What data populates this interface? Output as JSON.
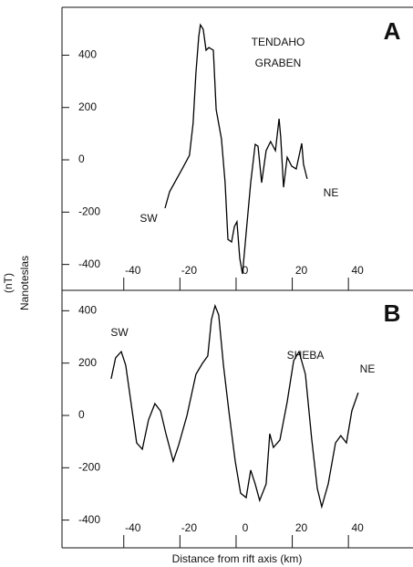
{
  "chart_data": [
    {
      "type": "line",
      "panel_label": "A",
      "title_lines": [
        "TENDAHO",
        "GRABEN"
      ],
      "annotations": [
        "SW",
        "NE"
      ],
      "xlim": [
        -62,
        63
      ],
      "ylim": [
        -499,
        583
      ],
      "xticks": [
        -40,
        -20,
        0,
        20,
        40
      ],
      "yticks": [
        400,
        200,
        0,
        -200,
        -400
      ],
      "color": "#000000",
      "x": [
        -25.3,
        -23.7,
        -19.2,
        -16.6,
        -15.3,
        -14.3,
        -13.3,
        -12.7,
        -11.7,
        -10.7,
        -9.7,
        -8.1,
        -7.1,
        -5.2,
        -3.9,
        -2.9,
        -1.6,
        -0.6,
        0.3,
        1.3,
        2.3,
        3.6,
        5.2,
        6.8,
        7.8,
        9.1,
        10.7,
        12.3,
        14,
        15.3,
        15.9,
        16.9,
        18.2,
        19.8,
        21.4,
        23.4,
        24,
        25.3
      ],
      "values": [
        -185,
        -122,
        -35,
        17,
        140,
        332,
        471,
        516,
        499,
        419,
        429,
        419,
        192,
        80,
        -87,
        -304,
        -314,
        -255,
        -237,
        -377,
        -436,
        -279,
        -87,
        59,
        52,
        -87,
        35,
        70,
        35,
        157,
        87,
        -105,
        10,
        -24,
        -35,
        63,
        -17,
        -73
      ]
    },
    {
      "type": "line",
      "panel_label": "B",
      "title_lines": [
        "SHEBA"
      ],
      "annotations": [
        "SW",
        "NE"
      ],
      "xlim": [
        -62,
        63
      ],
      "ylim": [
        -506,
        478
      ],
      "xticks": [
        -40,
        -20,
        0,
        20,
        40
      ],
      "yticks": [
        400,
        200,
        0,
        -200,
        -400
      ],
      "color": "#000000",
      "x": [
        -44.5,
        -42.9,
        -40.9,
        -39.3,
        -37,
        -35.4,
        -33.4,
        -31.2,
        -28.9,
        -26.9,
        -25,
        -22.4,
        -20.5,
        -17.5,
        -14.3,
        -12,
        -10.1,
        -8.8,
        -7.5,
        -6.2,
        -4.5,
        -2.6,
        -0.3,
        1.6,
        3.6,
        5.2,
        6.8,
        8.4,
        10.7,
        12,
        13.3,
        15.6,
        18.2,
        20.5,
        22.4,
        24.7,
        26.9,
        28.9,
        30.5,
        32.8,
        35.4,
        37.3,
        39.3,
        41.2,
        43.5
      ],
      "values": [
        140,
        220,
        244,
        192,
        17,
        -105,
        -129,
        -17,
        45,
        17,
        -70,
        -175,
        -115,
        0,
        157,
        199,
        227,
        366,
        419,
        384,
        192,
        17,
        -175,
        -297,
        -314,
        -209,
        -262,
        -325,
        -262,
        -70,
        -122,
        -94,
        52,
        209,
        244,
        157,
        -87,
        -279,
        -349,
        -262,
        -105,
        -77,
        -105,
        17,
        87
      ]
    }
  ],
  "ylabel_unit": "(nT)",
  "ylabel": "Nanoteslas",
  "xlabel": "Distance from rift axis (km)"
}
